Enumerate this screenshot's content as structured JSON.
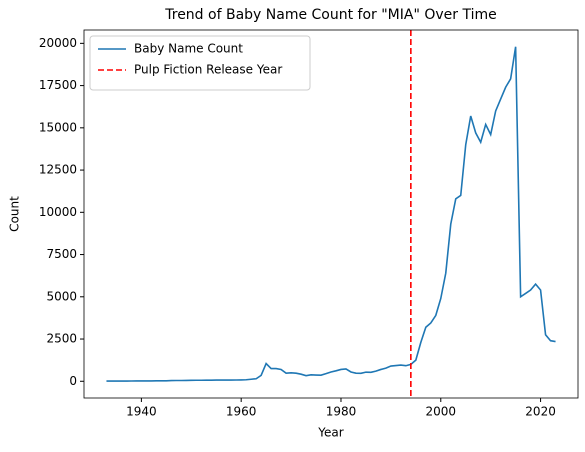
{
  "chart_data": {
    "type": "line",
    "title": "Trend of Baby Name Count for \"MIA\" Over Time",
    "xlabel": "Year",
    "ylabel": "Count",
    "x": [
      1933,
      1934,
      1935,
      1936,
      1937,
      1938,
      1939,
      1940,
      1941,
      1942,
      1943,
      1944,
      1945,
      1946,
      1947,
      1948,
      1949,
      1950,
      1951,
      1952,
      1953,
      1954,
      1955,
      1956,
      1957,
      1958,
      1959,
      1960,
      1961,
      1962,
      1963,
      1964,
      1965,
      1966,
      1967,
      1968,
      1969,
      1970,
      1971,
      1972,
      1973,
      1974,
      1975,
      1976,
      1977,
      1978,
      1979,
      1980,
      1981,
      1982,
      1983,
      1984,
      1985,
      1986,
      1987,
      1988,
      1989,
      1990,
      1991,
      1992,
      1993,
      1994,
      1995,
      1996,
      1997,
      1998,
      1999,
      2000,
      2001,
      2002,
      2003,
      2004,
      2005,
      2006,
      2007,
      2008,
      2009,
      2010,
      2011,
      2012,
      2013,
      2014,
      2015,
      2016,
      2017,
      2018,
      2019,
      2020,
      2021,
      2022,
      2023
    ],
    "series": [
      {
        "name": "Baby Name Count",
        "color": "#1f77b4",
        "values": [
          10,
          12,
          14,
          12,
          15,
          16,
          18,
          20,
          22,
          20,
          25,
          25,
          28,
          40,
          45,
          45,
          50,
          55,
          60,
          60,
          65,
          65,
          70,
          70,
          75,
          70,
          75,
          80,
          90,
          120,
          150,
          350,
          1050,
          750,
          750,
          700,
          480,
          500,
          480,
          420,
          330,
          380,
          370,
          360,
          450,
          550,
          620,
          700,
          730,
          550,
          480,
          470,
          540,
          530,
          600,
          700,
          780,
          900,
          930,
          960,
          920,
          1000,
          1250,
          2300,
          3200,
          3450,
          3900,
          4900,
          6400,
          9300,
          10800,
          11000,
          14000,
          15700,
          14700,
          14150,
          15200,
          14600,
          16000,
          16700,
          17400,
          17900,
          19800,
          5000,
          5200,
          5400,
          5750,
          5400,
          2750,
          2400,
          2350
        ]
      }
    ],
    "vlines": [
      {
        "x": 1994,
        "name": "Pulp Fiction Release Year",
        "color": "#ff0000",
        "style": "dashed"
      }
    ],
    "xlim": [
      1928.5,
      2027.5
    ],
    "xticks": [
      1940,
      1960,
      1980,
      2000,
      2020
    ],
    "ylim": [
      -990,
      20790
    ],
    "yticks": [
      0,
      2500,
      5000,
      7500,
      10000,
      12500,
      15000,
      17500,
      20000
    ],
    "legend": "upper left",
    "grid": false
  }
}
